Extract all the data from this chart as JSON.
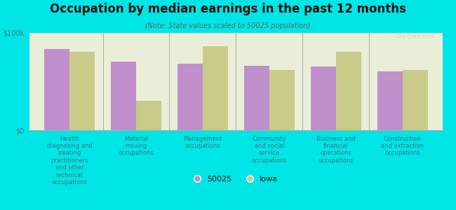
{
  "title": "Occupation by median earnings in the past 12 months",
  "subtitle": "(Note: State values scaled to 50025 population)",
  "background_color": "#00e5e5",
  "plot_bg_color": "#eaeed8",
  "categories": [
    "Health\ndiagnosing and\ntreating\npractitioners\nand other\ntechnical\noccupations",
    "Material\nmoving\noccupations",
    "Management\noccupations",
    "Community\nand social\nservice\noccupations",
    "Business and\nfinancial\noperations\noccupations",
    "Construction\nand extraction\noccupations"
  ],
  "values_50025": [
    83000,
    70000,
    68000,
    66000,
    65000,
    60000
  ],
  "values_iowa": [
    80000,
    30000,
    86000,
    62000,
    80000,
    62000
  ],
  "color_50025": "#c090cc",
  "color_iowa": "#c8cc88",
  "ylim": [
    0,
    100000
  ],
  "yticks": [
    0,
    100000
  ],
  "ytick_labels": [
    "$0",
    "$100k"
  ],
  "legend_labels": [
    "50025",
    "Iowa"
  ],
  "bar_width": 0.38,
  "title_fontsize": 12,
  "subtitle_fontsize": 7,
  "tick_fontsize": 6,
  "legend_fontsize": 8
}
